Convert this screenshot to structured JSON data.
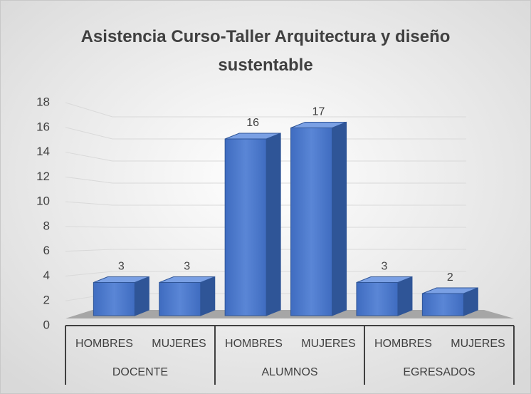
{
  "chart_data": {
    "type": "bar3d",
    "title": "Asistencia Curso-Taller Arquitectura y diseño sustentable",
    "categories": [
      "HOMBRES",
      "MUJERES",
      "HOMBRES",
      "MUJERES",
      "HOMBRES",
      "MUJERES"
    ],
    "groups": [
      "DOCENTE",
      "ALUMNOS",
      "EGRESADOS"
    ],
    "values": [
      3,
      3,
      16,
      17,
      3,
      2
    ],
    "color": "#4472c4",
    "ylim": [
      0,
      18
    ],
    "yticks": [
      0,
      2,
      4,
      6,
      8,
      10,
      12,
      14,
      16,
      18
    ],
    "grid": true
  }
}
